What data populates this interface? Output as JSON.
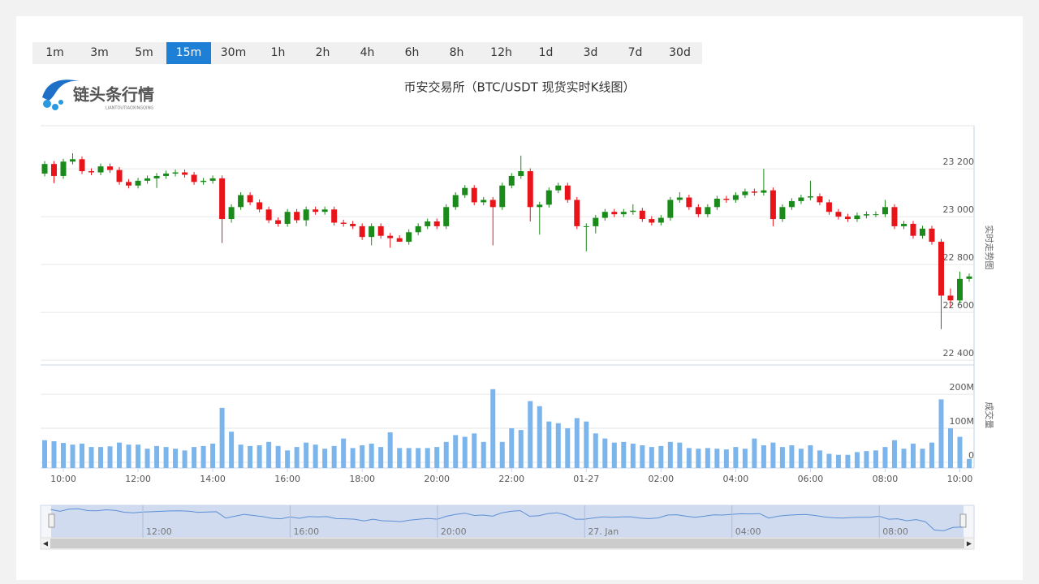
{
  "timeframes": [
    "1m",
    "3m",
    "5m",
    "15m",
    "30m",
    "1h",
    "2h",
    "4h",
    "6h",
    "8h",
    "12h",
    "1d",
    "3d",
    "7d",
    "30d"
  ],
  "selected_timeframe": "15m",
  "logo": {
    "name": "链头条行情",
    "subtitle": "LIANTOUTIAOXINGQING"
  },
  "chart_data": {
    "type": "candlestick",
    "title": "币安交易所（BTC/USDT 现货实时K线图）",
    "y_axis_label": "实时走势图",
    "y2_axis_label": "成交量",
    "up_color": "#1a8a1a",
    "down_color": "#e8141a",
    "volume_color": "#7cb5ec",
    "grid": true,
    "categories": [
      null,
      null,
      "10:00",
      null,
      null,
      null,
      null,
      null,
      null,
      null,
      "12:00",
      null,
      null,
      null,
      null,
      null,
      null,
      null,
      "14:00",
      null,
      null,
      null,
      null,
      null,
      null,
      null,
      "16:00",
      null,
      null,
      null,
      null,
      null,
      null,
      null,
      "18:00",
      null,
      null,
      null,
      null,
      null,
      null,
      null,
      "20:00",
      null,
      null,
      null,
      null,
      null,
      null,
      null,
      "22:00",
      null,
      null,
      null,
      null,
      null,
      null,
      null,
      "01-27",
      null,
      null,
      null,
      null,
      null,
      null,
      null,
      "02:00",
      null,
      null,
      null,
      null,
      null,
      null,
      null,
      "04:00",
      null,
      null,
      null,
      null,
      null,
      null,
      null,
      "06:00",
      null,
      null,
      null,
      null,
      null,
      null,
      null,
      "08:00",
      null,
      null,
      null,
      null,
      null,
      null,
      null,
      "10:00",
      null
    ],
    "open": [
      23180,
      23220,
      23170,
      23230,
      23240,
      23190,
      23185,
      23210,
      23195,
      23145,
      23130,
      23150,
      23160,
      23170,
      23180,
      23185,
      23175,
      23145,
      23150,
      23160,
      22990,
      23040,
      23090,
      23060,
      23030,
      22985,
      22970,
      23020,
      22985,
      23030,
      23020,
      23030,
      22975,
      22970,
      22960,
      22915,
      22960,
      22920,
      22910,
      22895,
      22935,
      22960,
      22980,
      22960,
      23040,
      23090,
      23120,
      23060,
      23070,
      23040,
      23130,
      23170,
      23190,
      23040,
      23050,
      23110,
      23130,
      23070,
      22960,
      22960,
      22995,
      23020,
      23010,
      23020,
      23025,
      22990,
      22975,
      22995,
      23070,
      23080,
      23040,
      23010,
      23040,
      23075,
      23070,
      23090,
      23105,
      23100,
      23110,
      22990,
      23040,
      23065,
      23080,
      23085,
      23060,
      23020,
      23000,
      22990,
      23005,
      23010,
      23010,
      23040,
      22960,
      22970,
      22920,
      22950,
      22895,
      22670,
      22650,
      22740
    ],
    "high": [
      23232,
      23232,
      23242,
      23265,
      23252,
      23202,
      23222,
      23222,
      23207,
      23157,
      23162,
      23172,
      23182,
      23192,
      23197,
      23197,
      23187,
      23162,
      23172,
      23172,
      23052,
      23102,
      23102,
      23072,
      23042,
      22997,
      23032,
      23032,
      23042,
      23042,
      23042,
      23042,
      22987,
      22982,
      22972,
      22972,
      22972,
      22932,
      22922,
      22947,
      22972,
      22992,
      22992,
      23052,
      23102,
      23132,
      23132,
      23082,
      23082,
      23142,
      23182,
      23255,
      23202,
      23062,
      23122,
      23142,
      23142,
      23082,
      22972,
      23007,
      23032,
      23032,
      23032,
      23052,
      23037,
      23002,
      23007,
      23082,
      23102,
      23092,
      23052,
      23052,
      23087,
      23087,
      23102,
      23117,
      23117,
      23200,
      23122,
      23052,
      23077,
      23092,
      23150,
      23097,
      23072,
      23032,
      23012,
      23017,
      23022,
      23022,
      23070,
      23052,
      22982,
      22982,
      22962,
      22962,
      22907,
      22700,
      22770,
      22762
    ],
    "low": [
      23168,
      23140,
      23158,
      23218,
      23178,
      23173,
      23173,
      23183,
      23133,
      23118,
      23118,
      23138,
      23120,
      23158,
      23168,
      23163,
      23133,
      23133,
      23138,
      22890,
      22975,
      23028,
      23048,
      23018,
      22973,
      22958,
      22958,
      22973,
      22960,
      23008,
      23008,
      22963,
      22958,
      22948,
      22903,
      22880,
      22908,
      22870,
      22898,
      22883,
      22923,
      22948,
      22948,
      22948,
      23028,
      23078,
      23048,
      23048,
      22880,
      23028,
      23118,
      23158,
      22980,
      22925,
      23038,
      23098,
      23058,
      22948,
      22855,
      22930,
      22983,
      22998,
      22998,
      23008,
      22978,
      22963,
      22963,
      22983,
      23058,
      23028,
      22998,
      22998,
      23028,
      23058,
      23058,
      23078,
      23088,
      23088,
      22960,
      22978,
      23028,
      23053,
      23068,
      23048,
      23008,
      22988,
      22978,
      22978,
      22993,
      22998,
      22998,
      22948,
      22948,
      22908,
      22908,
      22883,
      22530,
      22620,
      22638,
      22728
    ],
    "close": [
      23220,
      23170,
      23230,
      23240,
      23190,
      23185,
      23210,
      23195,
      23145,
      23130,
      23150,
      23160,
      23170,
      23180,
      23185,
      23175,
      23145,
      23150,
      23160,
      22990,
      23040,
      23090,
      23060,
      23030,
      22985,
      22970,
      23020,
      22985,
      23030,
      23020,
      23030,
      22975,
      22970,
      22960,
      22915,
      22960,
      22920,
      22910,
      22895,
      22935,
      22960,
      22980,
      22960,
      23040,
      23090,
      23120,
      23060,
      23070,
      23040,
      23130,
      23170,
      23190,
      23040,
      23050,
      23110,
      23130,
      23070,
      22960,
      22960,
      22995,
      23020,
      23010,
      23020,
      23025,
      22990,
      22975,
      22995,
      23070,
      23080,
      23040,
      23010,
      23040,
      23075,
      23070,
      23090,
      23105,
      23100,
      23110,
      22990,
      23040,
      23065,
      23080,
      23085,
      23060,
      23020,
      23000,
      22990,
      23005,
      23010,
      23010,
      23040,
      22960,
      22970,
      22920,
      22950,
      22895,
      22670,
      22650,
      22740,
      22750
    ],
    "volume": [
      65,
      62,
      57,
      52,
      55,
      45,
      45,
      47,
      58,
      52,
      52,
      40,
      48,
      45,
      40,
      35,
      45,
      48,
      55,
      160,
      90,
      52,
      48,
      50,
      60,
      48,
      35,
      45,
      58,
      52,
      40,
      48,
      70,
      42,
      50,
      55,
      45,
      88,
      42,
      42,
      42,
      42,
      45,
      60,
      80,
      75,
      85,
      60,
      215,
      60,
      100,
      95,
      180,
      165,
      120,
      115,
      100,
      130,
      120,
      85,
      70,
      58,
      60,
      55,
      50,
      45,
      48,
      60,
      58,
      42,
      40,
      42,
      40,
      38,
      45,
      40,
      70,
      50,
      58,
      45,
      50,
      40,
      50,
      35,
      25,
      22,
      22,
      30,
      33,
      35,
      45,
      65,
      40,
      55,
      40,
      58,
      185,
      100,
      75,
      10
    ],
    "ylim": [
      22380,
      23380
    ],
    "yticks": [
      {
        "value": 22400,
        "label": "22 400"
      },
      {
        "value": 22600,
        "label": "22 600"
      },
      {
        "value": 22800,
        "label": "22 800"
      },
      {
        "value": 23000,
        "label": "23 000"
      },
      {
        "value": 23200,
        "label": "23 200"
      }
    ],
    "y2lim": [
      0,
      286
    ],
    "y2ticks": [
      0,
      {
        "value": 100,
        "label": "100M"
      },
      {
        "value": 200,
        "label": "200M"
      }
    ],
    "navigator_labels": [
      "12:00",
      "16:00",
      "20:00",
      "27. Jan",
      "04:00",
      "08:00"
    ]
  }
}
